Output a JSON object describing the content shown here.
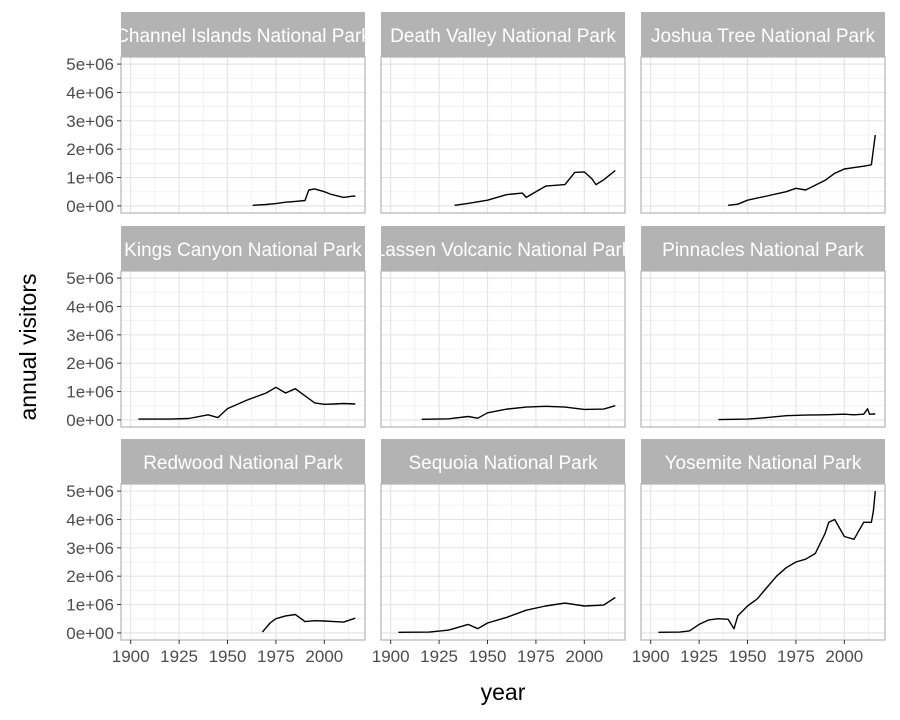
{
  "chart_data": {
    "type": "line",
    "layout": "facet_wrap 3x3",
    "xlabel": "year",
    "ylabel": "annual visitors",
    "x_range": [
      1900,
      2016
    ],
    "ylim": [
      0,
      5000000
    ],
    "x_ticks": [
      1900,
      1925,
      1950,
      1975,
      2000
    ],
    "x_tick_labels": [
      "1900",
      "1925",
      "1950",
      "1975",
      "2000"
    ],
    "y_ticks": [
      0,
      1000000,
      2000000,
      3000000,
      4000000,
      5000000
    ],
    "y_tick_labels": [
      "0e+00",
      "1e+06",
      "2e+06",
      "3e+06",
      "4e+06",
      "5e+06"
    ],
    "grid": true,
    "colors": {
      "line": "#000000",
      "panel_border": "#b3b3b3",
      "grid": "#e5e5e5",
      "strip": "#b3b3b3",
      "strip_text": "#ffffff"
    },
    "panels": [
      {
        "title": "Channel Islands National Park",
        "x": [
          1963,
          1970,
          1975,
          1980,
          1985,
          1990,
          1992,
          1995,
          2000,
          2003,
          2005,
          2010,
          2014,
          2016
        ],
        "values": [
          20000,
          50000,
          80000,
          130000,
          160000,
          190000,
          560000,
          600000,
          500000,
          420000,
          380000,
          300000,
          340000,
          350000
        ]
      },
      {
        "title": "Death Valley National Park",
        "x": [
          1933,
          1940,
          1950,
          1960,
          1968,
          1970,
          1980,
          1990,
          1995,
          2000,
          2004,
          2006,
          2010,
          2016
        ],
        "values": [
          20000,
          90000,
          200000,
          400000,
          450000,
          300000,
          700000,
          750000,
          1180000,
          1200000,
          950000,
          750000,
          920000,
          1250000
        ]
      },
      {
        "title": "Joshua Tree National Park",
        "x": [
          1940,
          1945,
          1950,
          1960,
          1970,
          1975,
          1980,
          1990,
          1995,
          2000,
          2005,
          2010,
          2014,
          2015,
          2016
        ],
        "values": [
          20000,
          60000,
          200000,
          350000,
          500000,
          620000,
          560000,
          900000,
          1150000,
          1300000,
          1350000,
          1400000,
          1450000,
          2000000,
          2500000
        ]
      },
      {
        "title": "Kings Canyon National Park",
        "x": [
          1904,
          1920,
          1930,
          1940,
          1945,
          1950,
          1960,
          1970,
          1975,
          1980,
          1985,
          1990,
          1995,
          2000,
          2005,
          2010,
          2016
        ],
        "values": [
          30000,
          30000,
          50000,
          180000,
          80000,
          400000,
          700000,
          950000,
          1150000,
          950000,
          1100000,
          850000,
          600000,
          550000,
          560000,
          580000,
          560000
        ]
      },
      {
        "title": "Lassen Volcanic National Park",
        "x": [
          1916,
          1930,
          1940,
          1945,
          1950,
          1960,
          1970,
          1980,
          1990,
          2000,
          2010,
          2016
        ],
        "values": [
          20000,
          40000,
          120000,
          60000,
          250000,
          380000,
          450000,
          480000,
          450000,
          370000,
          380000,
          500000
        ]
      },
      {
        "title": "Pinnacles National Park",
        "x": [
          1935,
          1950,
          1960,
          1970,
          1980,
          1990,
          2000,
          2005,
          2010,
          2012,
          2013,
          2016
        ],
        "values": [
          10000,
          30000,
          80000,
          150000,
          170000,
          180000,
          200000,
          180000,
          200000,
          390000,
          200000,
          210000
        ]
      },
      {
        "title": "Redwood National Park",
        "x": [
          1968,
          1972,
          1975,
          1980,
          1985,
          1990,
          1995,
          2000,
          2005,
          2010,
          2016
        ],
        "values": [
          30000,
          350000,
          500000,
          600000,
          650000,
          400000,
          430000,
          420000,
          400000,
          380000,
          520000
        ]
      },
      {
        "title": "Sequoia National Park",
        "x": [
          1904,
          1920,
          1930,
          1940,
          1945,
          1950,
          1960,
          1970,
          1980,
          1985,
          1990,
          2000,
          2010,
          2016
        ],
        "values": [
          20000,
          30000,
          100000,
          300000,
          150000,
          350000,
          550000,
          800000,
          950000,
          1000000,
          1050000,
          950000,
          980000,
          1250000
        ]
      },
      {
        "title": "Yosemite National Park",
        "x": [
          1904,
          1915,
          1920,
          1925,
          1930,
          1935,
          1940,
          1943,
          1945,
          1950,
          1955,
          1960,
          1965,
          1970,
          1975,
          1980,
          1985,
          1990,
          1992,
          1995,
          2000,
          2005,
          2010,
          2014,
          2015,
          2016
        ],
        "values": [
          20000,
          30000,
          70000,
          300000,
          460000,
          500000,
          480000,
          150000,
          600000,
          950000,
          1200000,
          1600000,
          2000000,
          2300000,
          2500000,
          2600000,
          2800000,
          3500000,
          3900000,
          4000000,
          3400000,
          3300000,
          3900000,
          3900000,
          4300000,
          5000000
        ]
      }
    ]
  }
}
